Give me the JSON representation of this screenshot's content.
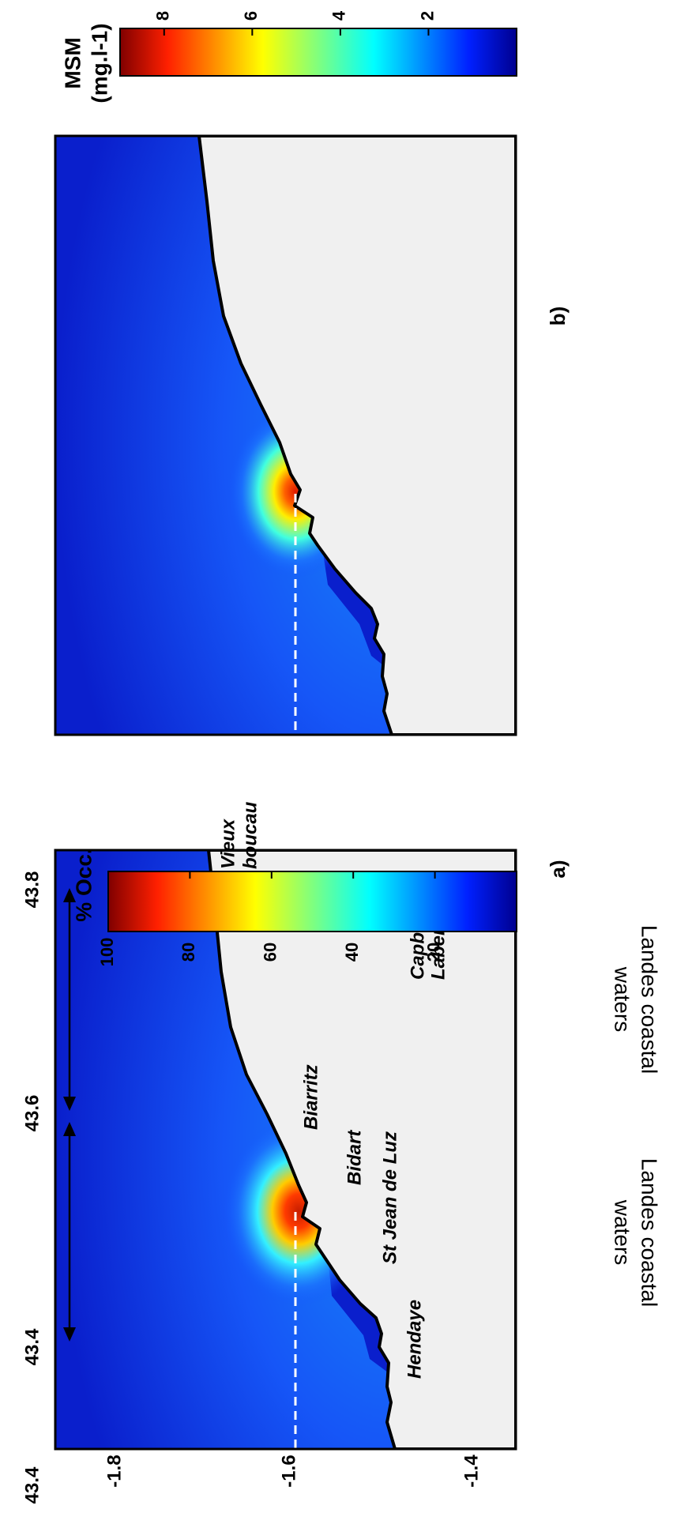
{
  "figure": {
    "panel_a_label": "a)",
    "panel_b_label": "b)",
    "region_label_line1": "Landes coastal",
    "region_label_line2": "waters",
    "place_names": [
      "Vieux",
      "boucau",
      "Capbreton",
      "Labenne",
      "Biarritz",
      "Bidart",
      "St Jean de Luz",
      "Hendaye"
    ]
  },
  "chart_data": [
    {
      "type": "heatmap",
      "panel": "a)",
      "x_ticks": [
        "-1.8",
        "-1.6",
        "-1.4"
      ],
      "y_ticks": [
        "43.8",
        "43.6",
        "43.4"
      ],
      "y_extra_tick": "43.4",
      "colorbar": {
        "label": "% Occ.",
        "range": [
          0,
          100
        ],
        "ticks": [
          "20",
          "40",
          "60",
          "80",
          "100"
        ],
        "colormap": "jet"
      },
      "transect": "dashed white line at latitude ~43.53 from the coast westward"
    },
    {
      "type": "heatmap",
      "panel": "b)",
      "colorbar": {
        "label_line1": "MSM",
        "label_line2": "(mg.l-1)",
        "range": [
          0,
          9
        ],
        "ticks": [
          "2",
          "4",
          "6",
          "8"
        ],
        "colormap": "jet"
      },
      "transect": "dashed white line at latitude ~43.53 from the coast westward"
    }
  ],
  "colors": {
    "land": "#f0f0f0",
    "frame": "#000000",
    "jet_low": "#00008f",
    "jet_mid": "#7fff7f",
    "jet_high": "#800000"
  }
}
